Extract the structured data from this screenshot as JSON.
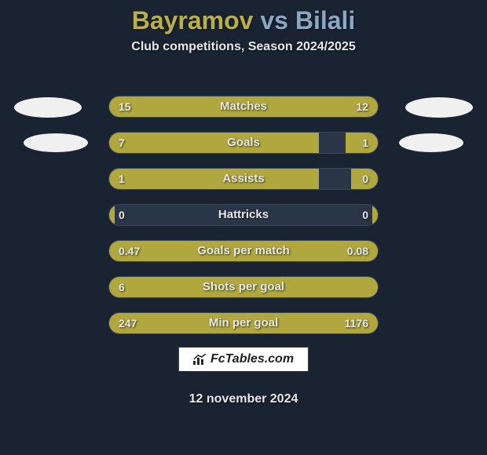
{
  "title": {
    "player1": "Bayramov",
    "vs": "vs",
    "player2": "Bilali",
    "player1_color": "#b8b04a",
    "player2_color": "#8aa8c4",
    "fontsize": 32
  },
  "subtitle": "Club competitions, Season 2024/2025",
  "background_color": "#1a2332",
  "bar_fill_color": "#b0a83e",
  "bar_bg_color": "#2a3648",
  "text_color": "#e8e8e8",
  "stats": [
    {
      "label": "Matches",
      "left_val": "15",
      "right_val": "12",
      "left_pct": 55.6,
      "right_pct": 44.4
    },
    {
      "label": "Goals",
      "left_val": "7",
      "right_val": "1",
      "left_pct": 78,
      "right_pct": 12
    },
    {
      "label": "Assists",
      "left_val": "1",
      "right_val": "0",
      "left_pct": 78,
      "right_pct": 10
    },
    {
      "label": "Hattricks",
      "left_val": "0",
      "right_val": "0",
      "left_pct": 2,
      "right_pct": 2
    },
    {
      "label": "Goals per match",
      "left_val": "0.47",
      "right_val": "0.08",
      "left_pct": 85.5,
      "right_pct": 14.5
    },
    {
      "label": "Shots per goal",
      "left_val": "6",
      "right_val": "",
      "left_pct": 100,
      "right_pct": 0
    },
    {
      "label": "Min per goal",
      "left_val": "247",
      "right_val": "1176",
      "left_pct": 17.4,
      "right_pct": 82.6
    }
  ],
  "watermark": "FcTables.com",
  "date": "12 november 2024"
}
